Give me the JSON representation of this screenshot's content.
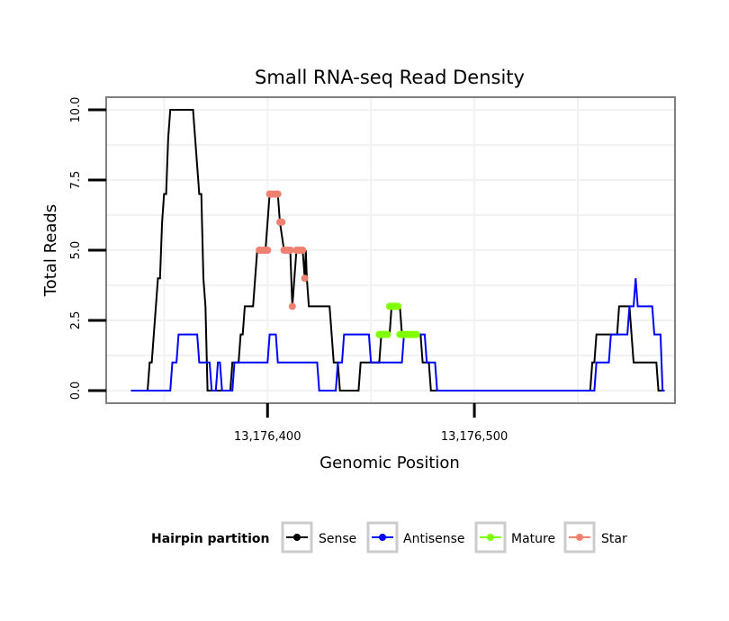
{
  "chart_data": {
    "type": "line",
    "title": "Small RNA-seq Read Density",
    "xlabel": "Genomic Position",
    "ylabel": "Total Reads",
    "xlim": [
      13176322,
      13176597
    ],
    "ylim": [
      -0.45,
      10.45
    ],
    "x_ticks": [
      {
        "value": 13176400,
        "label": "13,176,400"
      },
      {
        "value": 13176500,
        "label": "13,176,500"
      }
    ],
    "y_ticks": [
      {
        "value": 0,
        "label": "0.0"
      },
      {
        "value": 2.5,
        "label": "2.5"
      },
      {
        "value": 5,
        "label": "5.0"
      },
      {
        "value": 7.5,
        "label": "7.5"
      },
      {
        "value": 10,
        "label": "10.0"
      }
    ],
    "legend": {
      "title": "Hairpin partition",
      "position": "bottom",
      "entries": [
        {
          "name": "Sense",
          "color": "#000000"
        },
        {
          "name": "Antisense",
          "color": "#0000ff"
        },
        {
          "name": "Mature",
          "color": "#7fff00"
        },
        {
          "name": "Star",
          "color": "#f08070"
        }
      ]
    },
    "series": [
      {
        "name": "Sense",
        "color": "#000000",
        "points": [
          [
            13176334,
            0
          ],
          [
            13176342,
            0
          ],
          [
            13176343,
            1
          ],
          [
            13176344,
            1
          ],
          [
            13176345,
            2
          ],
          [
            13176346,
            3
          ],
          [
            13176347,
            4
          ],
          [
            13176348,
            4
          ],
          [
            13176349,
            6
          ],
          [
            13176350,
            7
          ],
          [
            13176351,
            7
          ],
          [
            13176352,
            9
          ],
          [
            13176353,
            10
          ],
          [
            13176364,
            10
          ],
          [
            13176365,
            9
          ],
          [
            13176366,
            8
          ],
          [
            13176367,
            7
          ],
          [
            13176368,
            7
          ],
          [
            13176369,
            4
          ],
          [
            13176370,
            3
          ],
          [
            13176371,
            0
          ],
          [
            13176382,
            0
          ],
          [
            13176383,
            1
          ],
          [
            13176386,
            1
          ],
          [
            13176387,
            2
          ],
          [
            13176388,
            2
          ],
          [
            13176389,
            3
          ],
          [
            13176393,
            3
          ],
          [
            13176394,
            4
          ],
          [
            13176395,
            5
          ],
          [
            13176399,
            5
          ],
          [
            13176400,
            6
          ],
          [
            13176401,
            7
          ],
          [
            13176405,
            7
          ],
          [
            13176406,
            6
          ],
          [
            13176408,
            5
          ],
          [
            13176411,
            5
          ],
          [
            13176412,
            3
          ],
          [
            13176414,
            5
          ],
          [
            13176417,
            5
          ],
          [
            13176418,
            4
          ],
          [
            13176418.5,
            5
          ],
          [
            13176419,
            4
          ],
          [
            13176420,
            3
          ],
          [
            13176430,
            3
          ],
          [
            13176431,
            2
          ],
          [
            13176432,
            1
          ],
          [
            13176434,
            1
          ],
          [
            13176435,
            0
          ],
          [
            13176444,
            0
          ],
          [
            13176445,
            1
          ],
          [
            13176454,
            1
          ],
          [
            13176455,
            2
          ],
          [
            13176459,
            2
          ],
          [
            13176460,
            3
          ],
          [
            13176464,
            3
          ],
          [
            13176465,
            2
          ],
          [
            13176474,
            2
          ],
          [
            13176475,
            1
          ],
          [
            13176478,
            1
          ],
          [
            13176479,
            0
          ],
          [
            13176556,
            0
          ],
          [
            13176557,
            1
          ],
          [
            13176558,
            1
          ],
          [
            13176559,
            2
          ],
          [
            13176569,
            2
          ],
          [
            13176570,
            3
          ],
          [
            13176575,
            3
          ],
          [
            13176576,
            2
          ],
          [
            13176577,
            1
          ],
          [
            13176588,
            1
          ],
          [
            13176589,
            0
          ],
          [
            13176592,
            0
          ]
        ]
      },
      {
        "name": "Antisense",
        "color": "#0000ff",
        "points": [
          [
            13176334,
            0
          ],
          [
            13176353,
            0
          ],
          [
            13176354,
            1
          ],
          [
            13176356,
            1
          ],
          [
            13176357,
            2
          ],
          [
            13176366,
            2
          ],
          [
            13176367,
            1
          ],
          [
            13176372,
            1
          ],
          [
            13176373,
            0
          ],
          [
            13176375,
            0
          ],
          [
            13176376,
            1
          ],
          [
            13176377,
            1
          ],
          [
            13176378,
            0
          ],
          [
            13176383,
            0
          ],
          [
            13176384,
            1
          ],
          [
            13176400,
            1
          ],
          [
            13176401,
            2
          ],
          [
            13176404,
            2
          ],
          [
            13176405,
            1
          ],
          [
            13176424,
            1
          ],
          [
            13176425,
            0
          ],
          [
            13176433,
            0
          ],
          [
            13176434,
            1
          ],
          [
            13176436,
            1
          ],
          [
            13176437,
            2
          ],
          [
            13176449,
            2
          ],
          [
            13176450,
            1
          ],
          [
            13176465,
            1
          ],
          [
            13176466,
            2
          ],
          [
            13176476,
            2
          ],
          [
            13176477,
            1
          ],
          [
            13176481,
            1
          ],
          [
            13176482,
            0
          ],
          [
            13176558,
            0
          ],
          [
            13176559,
            1
          ],
          [
            13176565,
            1
          ],
          [
            13176566,
            2
          ],
          [
            13176574,
            2
          ],
          [
            13176575,
            3
          ],
          [
            13176577,
            3
          ],
          [
            13176578,
            4
          ],
          [
            13176579,
            3
          ],
          [
            13176586,
            3
          ],
          [
            13176587,
            2
          ],
          [
            13176590,
            2
          ],
          [
            13176591,
            0
          ],
          [
            13176592,
            0
          ]
        ]
      }
    ],
    "marker_series": [
      {
        "name": "Star",
        "color": "#f08070",
        "points": [
          [
            13176396,
            5
          ],
          [
            13176397,
            5
          ],
          [
            13176398,
            5
          ],
          [
            13176399,
            5
          ],
          [
            13176400,
            5
          ],
          [
            13176401,
            7
          ],
          [
            13176402,
            7
          ],
          [
            13176403,
            7
          ],
          [
            13176404,
            7
          ],
          [
            13176405,
            7
          ],
          [
            13176406,
            6
          ],
          [
            13176407,
            6
          ],
          [
            13176408,
            5
          ],
          [
            13176409,
            5
          ],
          [
            13176410,
            5
          ],
          [
            13176411,
            5
          ],
          [
            13176412,
            3
          ],
          [
            13176414,
            5
          ],
          [
            13176415,
            5
          ],
          [
            13176416,
            5
          ],
          [
            13176417,
            5
          ],
          [
            13176418,
            4
          ]
        ]
      },
      {
        "name": "Mature",
        "color": "#7fff00",
        "points": [
          [
            13176454,
            2
          ],
          [
            13176455,
            2
          ],
          [
            13176456,
            2
          ],
          [
            13176457,
            2
          ],
          [
            13176458,
            2
          ],
          [
            13176459,
            3
          ],
          [
            13176460,
            3
          ],
          [
            13176461,
            3
          ],
          [
            13176462,
            3
          ],
          [
            13176463,
            3
          ],
          [
            13176464,
            2
          ],
          [
            13176465,
            2
          ],
          [
            13176466,
            2
          ],
          [
            13176467,
            2
          ],
          [
            13176468,
            2
          ],
          [
            13176469,
            2
          ],
          [
            13176470,
            2
          ],
          [
            13176471,
            2
          ],
          [
            13176472,
            2
          ]
        ]
      }
    ]
  }
}
